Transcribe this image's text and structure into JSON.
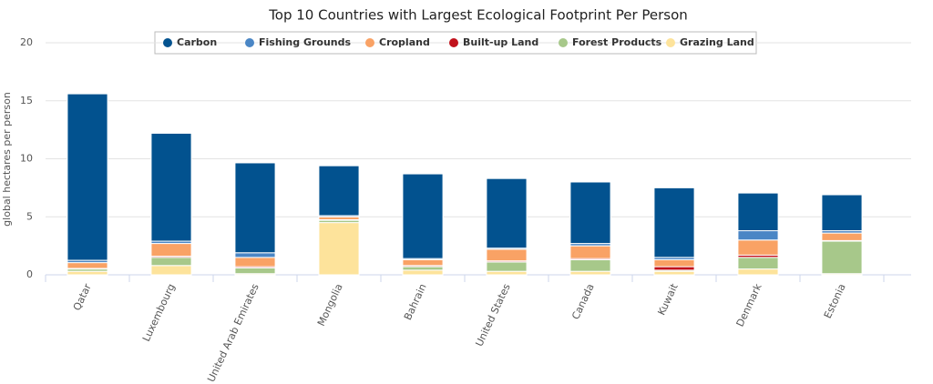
{
  "chart_data": {
    "type": "stacked-bar",
    "title": "Top 10 Countries with Largest Ecological Footprint Per Person",
    "y_label": "global hectares per person",
    "categories": [
      "Qatar",
      "Luxembourg",
      "United Arab Emirates",
      "Mongolia",
      "Bahrain",
      "United States",
      "Canada",
      "Kuwait",
      "Denmark",
      "Estonia"
    ],
    "series": [
      {
        "name": "Carbon",
        "color": "#02528f",
        "values": [
          14.35,
          9.3,
          7.75,
          4.3,
          7.3,
          6.0,
          5.3,
          6.0,
          3.25,
          3.1
        ]
      },
      {
        "name": "Fishing Grounds",
        "color": "#4a86c5",
        "values": [
          0.2,
          0.2,
          0.4,
          0.1,
          0.1,
          0.1,
          0.2,
          0.2,
          0.8,
          0.2
        ]
      },
      {
        "name": "Cropland",
        "color": "#f9a265",
        "values": [
          0.5,
          1.1,
          0.8,
          0.25,
          0.5,
          1.0,
          1.1,
          0.6,
          1.3,
          0.65
        ]
      },
      {
        "name": "Built-up Land",
        "color": "#c1121c",
        "values": [
          0.05,
          0.1,
          0.1,
          0.05,
          0.1,
          0.1,
          0.1,
          0.3,
          0.2,
          0.05
        ]
      },
      {
        "name": "Forest Products",
        "color": "#a7c88a",
        "values": [
          0.2,
          0.7,
          0.5,
          0.2,
          0.3,
          0.8,
          1.0,
          0.1,
          1.0,
          2.8
        ]
      },
      {
        "name": "Grazing Land",
        "color": "#fde39b",
        "values": [
          0.3,
          0.8,
          0.1,
          4.5,
          0.4,
          0.3,
          0.3,
          0.3,
          0.5,
          0.1
        ]
      }
    ],
    "ylim": [
      0,
      20
    ],
    "yticks": [
      0,
      5,
      10,
      15,
      20
    ],
    "grid": true
  }
}
